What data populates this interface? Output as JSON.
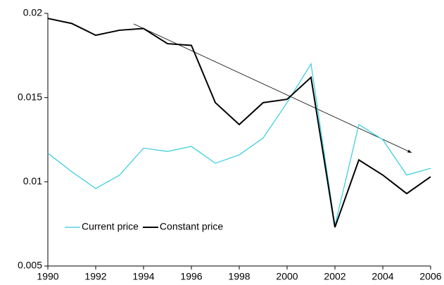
{
  "chart_data": {
    "type": "line",
    "x": [
      1990,
      1991,
      1992,
      1993,
      1994,
      1995,
      1996,
      1997,
      1998,
      1999,
      2000,
      2001,
      2002,
      2003,
      2004,
      2005,
      2006
    ],
    "series": [
      {
        "name": "Current price",
        "color": "#33ccdd",
        "values": [
          0.0117,
          0.0106,
          0.0096,
          0.0104,
          0.012,
          0.0118,
          0.0121,
          0.0111,
          0.0116,
          0.0126,
          0.0147,
          0.017,
          0.0074,
          0.0134,
          0.0125,
          0.0104,
          0.0108
        ]
      },
      {
        "name": "Constant price",
        "color": "#000000",
        "values": [
          0.0197,
          0.0194,
          0.0187,
          0.019,
          0.0191,
          0.0182,
          0.0181,
          0.0147,
          0.0134,
          0.0147,
          0.0149,
          0.0162,
          0.0073,
          0.0113,
          0.0104,
          0.0093,
          0.0103
        ]
      }
    ],
    "xlim": [
      1990,
      2006
    ],
    "xticks": [
      1990,
      1992,
      1994,
      1996,
      1998,
      2000,
      2002,
      2004,
      2006
    ],
    "ylim": [
      0.005,
      0.02
    ],
    "yticks": [
      0.005,
      0.01,
      0.015,
      0.02
    ],
    "grid": false,
    "legend": "lower left"
  }
}
